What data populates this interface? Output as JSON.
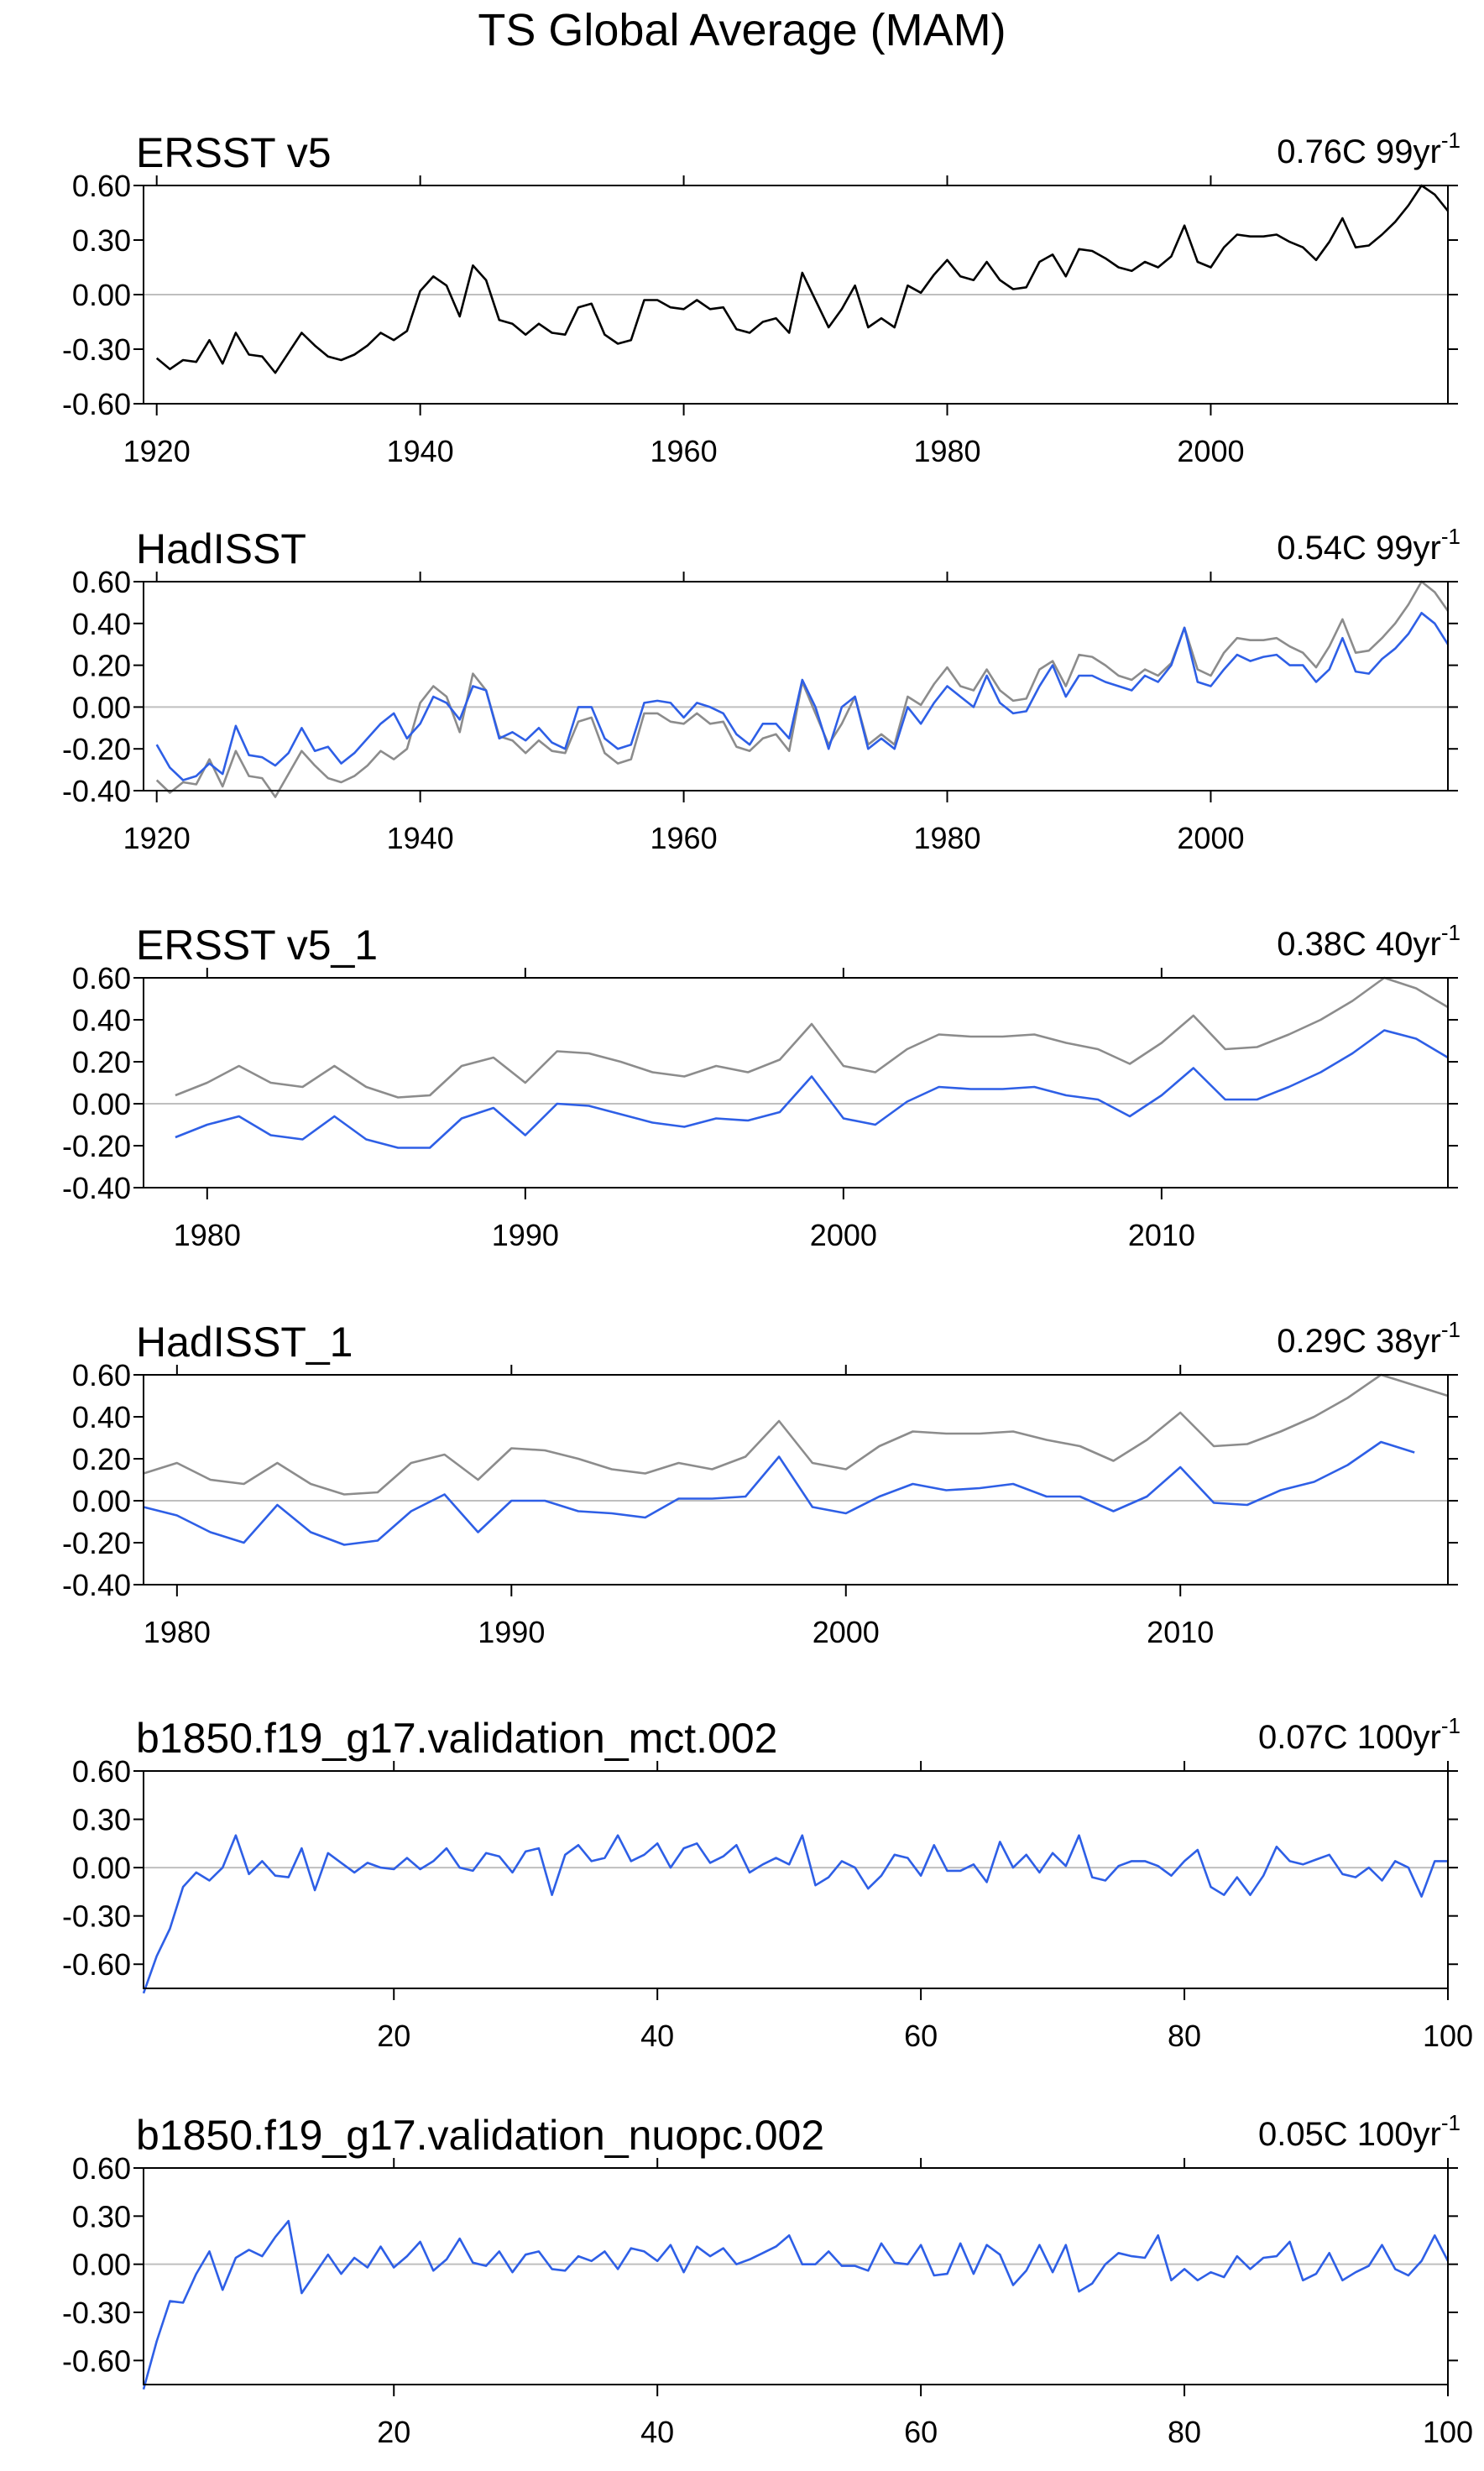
{
  "page": {
    "title": "TS Global Average (MAM)"
  },
  "colors": {
    "obs_line": "#000000",
    "model_line": "#2E5FE6",
    "reference_line": "#8C8C8C",
    "zero_line": "#BFBFBF",
    "axis": "#000000"
  },
  "chart_data": [
    {
      "type": "line",
      "title": "ERSST v5",
      "trend_label": "0.76C 99yr",
      "trend_superscript": "-1",
      "xlim": [
        1919,
        2018
      ],
      "ylim": [
        -0.6,
        0.6
      ],
      "yticks": [
        -0.6,
        -0.3,
        0.0,
        0.3,
        0.6
      ],
      "ytick_labels": [
        "-0.60",
        "-0.30",
        "0.00",
        "0.30",
        "0.60"
      ],
      "xticks": [
        1920,
        1940,
        1960,
        1980,
        2000
      ],
      "xtick_labels": [
        "1920",
        "1940",
        "1960",
        "1980",
        "2000"
      ],
      "x_start": 1920,
      "series": [
        {
          "name": "ERSST v5",
          "color": "#000000",
          "values": [
            -0.35,
            -0.41,
            -0.36,
            -0.37,
            -0.25,
            -0.38,
            -0.21,
            -0.33,
            -0.34,
            -0.43,
            -0.32,
            -0.21,
            -0.28,
            -0.34,
            -0.36,
            -0.33,
            -0.28,
            -0.21,
            -0.25,
            -0.2,
            0.02,
            0.1,
            0.05,
            -0.12,
            0.16,
            0.08,
            -0.14,
            -0.16,
            -0.22,
            -0.16,
            -0.21,
            -0.22,
            -0.07,
            -0.05,
            -0.22,
            -0.27,
            -0.25,
            -0.03,
            -0.03,
            -0.07,
            -0.08,
            -0.03,
            -0.08,
            -0.07,
            -0.19,
            -0.21,
            -0.15,
            -0.13,
            -0.21,
            0.12,
            -0.03,
            -0.18,
            -0.08,
            0.05,
            -0.18,
            -0.13,
            -0.18,
            0.05,
            0.01,
            0.11,
            0.19,
            0.1,
            0.08,
            0.18,
            0.08,
            0.03,
            0.04,
            0.18,
            0.22,
            0.1,
            0.25,
            0.24,
            0.2,
            0.15,
            0.13,
            0.18,
            0.15,
            0.21,
            0.38,
            0.18,
            0.15,
            0.26,
            0.33,
            0.32,
            0.32,
            0.33,
            0.29,
            0.26,
            0.19,
            0.29,
            0.42,
            0.26,
            0.27,
            0.33,
            0.4,
            0.49,
            0.6,
            0.55,
            0.46
          ]
        }
      ]
    },
    {
      "type": "line",
      "title": "HadISST",
      "trend_label": "0.54C 99yr",
      "trend_superscript": "-1",
      "xlim": [
        1919,
        2018
      ],
      "ylim": [
        -0.4,
        0.6
      ],
      "yticks": [
        -0.4,
        -0.2,
        0.0,
        0.2,
        0.4,
        0.6
      ],
      "ytick_labels": [
        "-0.40",
        "-0.20",
        "0.00",
        "0.20",
        "0.40",
        "0.60"
      ],
      "xticks": [
        1920,
        1940,
        1960,
        1980,
        2000
      ],
      "xtick_labels": [
        "1920",
        "1940",
        "1960",
        "1980",
        "2000"
      ],
      "x_start": 1920,
      "series": [
        {
          "name": "ERSST v5",
          "color": "#8C8C8C",
          "values": [
            -0.35,
            -0.41,
            -0.36,
            -0.37,
            -0.25,
            -0.38,
            -0.21,
            -0.33,
            -0.34,
            -0.43,
            -0.32,
            -0.21,
            -0.28,
            -0.34,
            -0.36,
            -0.33,
            -0.28,
            -0.21,
            -0.25,
            -0.2,
            0.02,
            0.1,
            0.05,
            -0.12,
            0.16,
            0.08,
            -0.14,
            -0.16,
            -0.22,
            -0.16,
            -0.21,
            -0.22,
            -0.07,
            -0.05,
            -0.22,
            -0.27,
            -0.25,
            -0.03,
            -0.03,
            -0.07,
            -0.08,
            -0.03,
            -0.08,
            -0.07,
            -0.19,
            -0.21,
            -0.15,
            -0.13,
            -0.21,
            0.12,
            -0.03,
            -0.18,
            -0.08,
            0.05,
            -0.18,
            -0.13,
            -0.18,
            0.05,
            0.01,
            0.11,
            0.19,
            0.1,
            0.08,
            0.18,
            0.08,
            0.03,
            0.04,
            0.18,
            0.22,
            0.1,
            0.25,
            0.24,
            0.2,
            0.15,
            0.13,
            0.18,
            0.15,
            0.21,
            0.38,
            0.18,
            0.15,
            0.26,
            0.33,
            0.32,
            0.32,
            0.33,
            0.29,
            0.26,
            0.19,
            0.29,
            0.42,
            0.26,
            0.27,
            0.33,
            0.4,
            0.49,
            0.6,
            0.55,
            0.46
          ]
        },
        {
          "name": "HadISST",
          "color": "#2E5FE6",
          "values": [
            -0.18,
            -0.29,
            -0.35,
            -0.33,
            -0.27,
            -0.32,
            -0.09,
            -0.23,
            -0.24,
            -0.28,
            -0.22,
            -0.1,
            -0.21,
            -0.19,
            -0.27,
            -0.22,
            -0.15,
            -0.08,
            -0.03,
            -0.15,
            -0.08,
            0.05,
            0.02,
            -0.06,
            0.1,
            0.08,
            -0.15,
            -0.12,
            -0.16,
            -0.1,
            -0.17,
            -0.2,
            0.0,
            0.0,
            -0.15,
            -0.2,
            -0.18,
            0.02,
            0.03,
            0.02,
            -0.05,
            0.02,
            0.0,
            -0.03,
            -0.13,
            -0.18,
            -0.08,
            -0.08,
            -0.15,
            0.13,
            0.0,
            -0.2,
            0.0,
            0.05,
            -0.2,
            -0.15,
            -0.2,
            0.0,
            -0.08,
            0.02,
            0.1,
            0.05,
            0.0,
            0.15,
            0.02,
            -0.03,
            -0.02,
            0.1,
            0.2,
            0.05,
            0.15,
            0.15,
            0.12,
            0.1,
            0.08,
            0.15,
            0.12,
            0.2,
            0.38,
            0.12,
            0.1,
            0.18,
            0.25,
            0.22,
            0.24,
            0.25,
            0.2,
            0.2,
            0.12,
            0.18,
            0.33,
            0.17,
            0.16,
            0.23,
            0.28,
            0.35,
            0.45,
            0.4,
            0.3
          ]
        }
      ]
    },
    {
      "type": "line",
      "title": "ERSST v5_1",
      "trend_label": "0.38C 40yr",
      "trend_superscript": "-1",
      "xlim": [
        1978,
        2019
      ],
      "ylim": [
        -0.4,
        0.6
      ],
      "yticks": [
        -0.4,
        -0.2,
        0.0,
        0.2,
        0.4,
        0.6
      ],
      "ytick_labels": [
        "-0.40",
        "-0.20",
        "0.00",
        "0.20",
        "0.40",
        "0.60"
      ],
      "xticks": [
        1980,
        1990,
        2000,
        2010
      ],
      "xtick_labels": [
        "1980",
        "1990",
        "2000",
        "2010"
      ],
      "x_start": 1979,
      "series": [
        {
          "name": "ERSST v5",
          "color": "#8C8C8C",
          "values": [
            0.04,
            0.1,
            0.18,
            0.1,
            0.08,
            0.18,
            0.08,
            0.03,
            0.04,
            0.18,
            0.22,
            0.1,
            0.25,
            0.24,
            0.2,
            0.15,
            0.13,
            0.18,
            0.15,
            0.21,
            0.38,
            0.18,
            0.15,
            0.26,
            0.33,
            0.32,
            0.32,
            0.33,
            0.29,
            0.26,
            0.19,
            0.29,
            0.42,
            0.26,
            0.27,
            0.33,
            0.4,
            0.49,
            0.6,
            0.55,
            0.46
          ]
        },
        {
          "name": "ERSST v5_1",
          "color": "#2E5FE6",
          "values": [
            -0.16,
            -0.1,
            -0.06,
            -0.15,
            -0.17,
            -0.06,
            -0.17,
            -0.21,
            -0.21,
            -0.07,
            -0.02,
            -0.15,
            0.0,
            -0.01,
            -0.05,
            -0.09,
            -0.11,
            -0.07,
            -0.08,
            -0.04,
            0.13,
            -0.07,
            -0.1,
            0.01,
            0.08,
            0.07,
            0.07,
            0.08,
            0.04,
            0.02,
            -0.06,
            0.04,
            0.17,
            0.02,
            0.02,
            0.08,
            0.15,
            0.24,
            0.35,
            0.31,
            0.22
          ]
        }
      ]
    },
    {
      "type": "line",
      "title": "HadISST_1",
      "trend_label": "0.29C 38yr",
      "trend_superscript": "-1",
      "xlim": [
        1979,
        2018
      ],
      "ylim": [
        -0.4,
        0.6
      ],
      "yticks": [
        -0.4,
        -0.2,
        0.0,
        0.2,
        0.4,
        0.6
      ],
      "ytick_labels": [
        "-0.40",
        "-0.20",
        "0.00",
        "0.20",
        "0.40",
        "0.60"
      ],
      "xticks": [
        1980,
        1990,
        2000,
        2010
      ],
      "xtick_labels": [
        "1980",
        "1990",
        "2000",
        "2010"
      ],
      "x_start": 1979,
      "series": [
        {
          "name": "ERSST v5",
          "color": "#8C8C8C",
          "values": [
            0.13,
            0.18,
            0.1,
            0.08,
            0.18,
            0.08,
            0.03,
            0.04,
            0.18,
            0.22,
            0.1,
            0.25,
            0.24,
            0.2,
            0.15,
            0.13,
            0.18,
            0.15,
            0.21,
            0.38,
            0.18,
            0.15,
            0.26,
            0.33,
            0.32,
            0.32,
            0.33,
            0.29,
            0.26,
            0.19,
            0.29,
            0.42,
            0.26,
            0.27,
            0.33,
            0.4,
            0.49,
            0.6,
            0.55,
            0.5
          ]
        },
        {
          "name": "HadISST_1",
          "color": "#2E5FE6",
          "values": [
            -0.03,
            -0.07,
            -0.15,
            -0.2,
            -0.02,
            -0.15,
            -0.21,
            -0.19,
            -0.05,
            0.03,
            -0.15,
            0.0,
            0.0,
            -0.05,
            -0.06,
            -0.08,
            0.01,
            0.01,
            0.02,
            0.21,
            -0.03,
            -0.06,
            0.02,
            0.08,
            0.05,
            0.06,
            0.08,
            0.02,
            0.02,
            -0.05,
            0.02,
            0.16,
            -0.01,
            -0.02,
            0.05,
            0.09,
            0.17,
            0.28,
            0.23
          ]
        }
      ]
    },
    {
      "type": "line",
      "title": "b1850.f19_g17.validation_mct.002",
      "trend_label": "0.07C 100yr",
      "trend_superscript": "-1",
      "xlim": [
        1,
        100
      ],
      "ylim": [
        -0.75,
        0.6
      ],
      "yticks": [
        -0.6,
        -0.3,
        0.0,
        0.3,
        0.6
      ],
      "ytick_labels": [
        "-0.60",
        "-0.30",
        "0.00",
        "0.30",
        "0.60"
      ],
      "xticks": [
        20,
        40,
        60,
        80,
        100
      ],
      "xtick_labels": [
        "20",
        "40",
        "60",
        "80",
        "100"
      ],
      "x_start": 1,
      "series": [
        {
          "name": "b1850.f19_g17.validation_mct.002",
          "color": "#2E5FE6",
          "values": [
            -0.78,
            -0.55,
            -0.38,
            -0.12,
            -0.03,
            -0.08,
            0.0,
            0.2,
            -0.04,
            0.04,
            -0.05,
            -0.06,
            0.12,
            -0.14,
            0.09,
            0.03,
            -0.03,
            0.03,
            0.0,
            -0.01,
            0.06,
            -0.01,
            0.04,
            0.12,
            0.0,
            -0.02,
            0.09,
            0.07,
            -0.03,
            0.1,
            0.12,
            -0.17,
            0.08,
            0.14,
            0.04,
            0.06,
            0.2,
            0.04,
            0.08,
            0.15,
            0.0,
            0.12,
            0.15,
            0.03,
            0.07,
            0.14,
            -0.03,
            0.02,
            0.06,
            0.02,
            0.2,
            -0.11,
            -0.06,
            0.04,
            0.0,
            -0.13,
            -0.05,
            0.08,
            0.06,
            -0.05,
            0.14,
            -0.02,
            -0.02,
            0.02,
            -0.09,
            0.16,
            0.0,
            0.08,
            -0.03,
            0.09,
            0.01,
            0.2,
            -0.06,
            -0.08,
            0.01,
            0.04,
            0.04,
            0.01,
            -0.05,
            0.04,
            0.11,
            -0.12,
            -0.17,
            -0.06,
            -0.17,
            -0.05,
            0.13,
            0.04,
            0.02,
            0.05,
            0.08,
            -0.04,
            -0.06,
            0.0,
            -0.08,
            0.04,
            0.0,
            -0.18,
            0.04,
            0.04
          ]
        }
      ]
    },
    {
      "type": "line",
      "title": "b1850.f19_g17.validation_nuopc.002",
      "trend_label": "0.05C 100yr",
      "trend_superscript": "-1",
      "xlim": [
        1,
        100
      ],
      "ylim": [
        -0.75,
        0.6
      ],
      "yticks": [
        -0.6,
        -0.3,
        0.0,
        0.3,
        0.6
      ],
      "ytick_labels": [
        "-0.60",
        "-0.30",
        "0.00",
        "0.30",
        "0.60"
      ],
      "xticks": [
        20,
        40,
        60,
        80,
        100
      ],
      "xtick_labels": [
        "20",
        "40",
        "60",
        "80",
        "100"
      ],
      "x_start": 1,
      "series": [
        {
          "name": "b1850.f19_g17.validation_nuopc.002",
          "color": "#2E5FE6",
          "values": [
            -0.78,
            -0.48,
            -0.23,
            -0.24,
            -0.06,
            0.08,
            -0.16,
            0.04,
            0.09,
            0.05,
            0.17,
            0.27,
            -0.18,
            -0.06,
            0.06,
            -0.06,
            0.04,
            -0.02,
            0.11,
            -0.02,
            0.05,
            0.14,
            -0.04,
            0.03,
            0.16,
            0.01,
            -0.01,
            0.08,
            -0.05,
            0.06,
            0.08,
            -0.03,
            -0.04,
            0.05,
            0.02,
            0.08,
            -0.03,
            0.1,
            0.08,
            0.02,
            0.12,
            -0.05,
            0.11,
            0.05,
            0.1,
            0.0,
            0.03,
            0.07,
            0.11,
            0.18,
            0.0,
            0.0,
            0.08,
            -0.01,
            -0.01,
            -0.04,
            0.13,
            0.01,
            0.0,
            0.12,
            -0.07,
            -0.06,
            0.13,
            -0.06,
            0.12,
            0.06,
            -0.13,
            -0.04,
            0.12,
            -0.05,
            0.12,
            -0.17,
            -0.12,
            0.0,
            0.07,
            0.05,
            0.04,
            0.18,
            -0.1,
            -0.03,
            -0.1,
            -0.05,
            -0.08,
            0.05,
            -0.03,
            0.04,
            0.05,
            0.14,
            -0.1,
            -0.06,
            0.07,
            -0.1,
            -0.05,
            -0.01,
            0.12,
            -0.03,
            -0.07,
            0.02,
            0.18,
            0.02
          ]
        }
      ]
    }
  ]
}
